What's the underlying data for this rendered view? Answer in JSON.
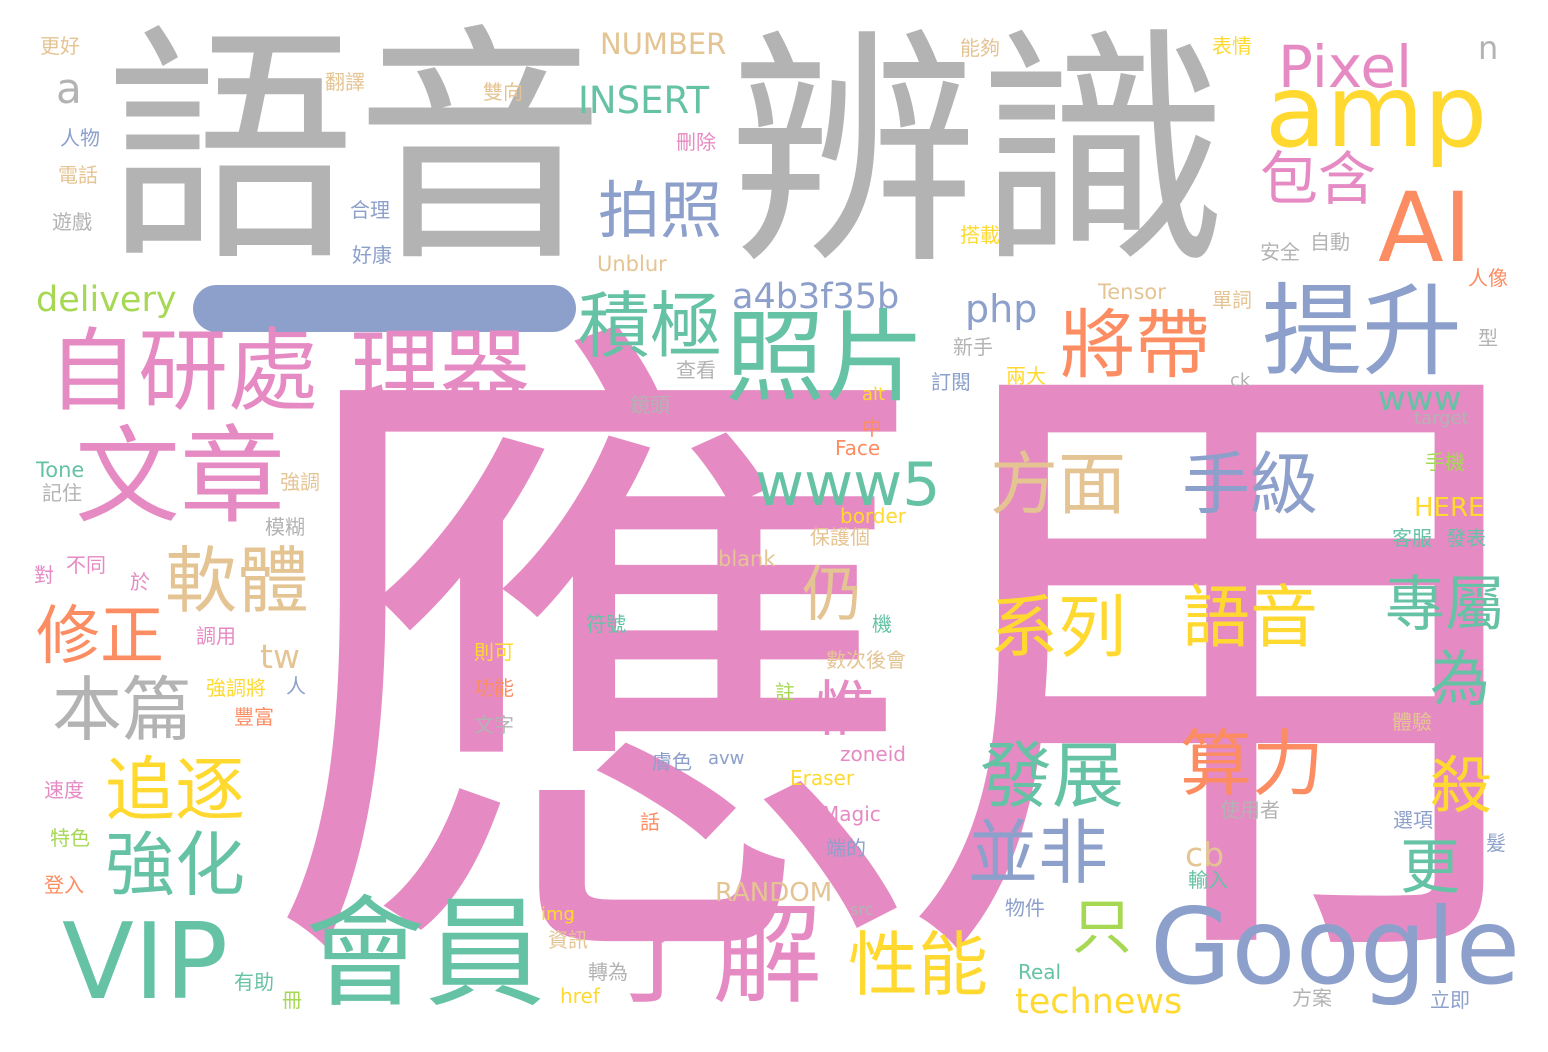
{
  "palette": {
    "gray": "#b3b3b3",
    "pink": "#e68ac3",
    "green": "#66c2a5",
    "blue": "#8da0cb",
    "orange": "#fc8d62",
    "yellow": "#ffd92f",
    "tan": "#e5c494",
    "lime": "#a6d854"
  },
  "words": [
    {
      "text": "應用",
      "color": "pink"
    },
    {
      "text": "語音",
      "color": "gray"
    },
    {
      "text": "辨識",
      "color": "gray"
    },
    {
      "text": "Google",
      "color": "blue"
    },
    {
      "text": "VIP",
      "color": "green"
    },
    {
      "text": "會員",
      "color": "green"
    },
    {
      "text": "了解",
      "color": "pink"
    },
    {
      "text": "自研處",
      "color": "pink"
    },
    {
      "text": "理器",
      "color": "pink"
    },
    {
      "text": "文章",
      "color": "pink"
    },
    {
      "text": "照片",
      "color": "green"
    },
    {
      "text": "提升",
      "color": "blue"
    },
    {
      "text": "amp",
      "color": "yellow"
    },
    {
      "text": "AI",
      "color": "orange"
    },
    {
      "text": "Pixel",
      "color": "pink"
    },
    {
      "text": "方面",
      "color": "tan"
    },
    {
      "text": "手級",
      "color": "blue"
    },
    {
      "text": "系列",
      "color": "yellow"
    },
    {
      "text": "語音",
      "color": "yellow"
    },
    {
      "text": "發展",
      "color": "green"
    },
    {
      "text": "算力",
      "color": "orange"
    },
    {
      "text": "並非",
      "color": "blue"
    },
    {
      "text": "拍照",
      "color": "blue"
    },
    {
      "text": "積極",
      "color": "green"
    },
    {
      "text": "將帶",
      "color": "orange"
    },
    {
      "text": "包含",
      "color": "pink"
    },
    {
      "text": "軟體",
      "color": "tan"
    },
    {
      "text": "本篇",
      "color": "gray"
    },
    {
      "text": "修正",
      "color": "orange"
    },
    {
      "text": "追逐",
      "color": "yellow"
    },
    {
      "text": "強化",
      "color": "green"
    },
    {
      "text": "性能",
      "color": "yellow"
    },
    {
      "text": "專屬",
      "color": "green"
    },
    {
      "text": "www5",
      "color": "green"
    },
    {
      "text": "a4b3f35b",
      "color": "blue"
    },
    {
      "text": "delivery",
      "color": "lime"
    },
    {
      "text": "INSERT",
      "color": "green"
    },
    {
      "text": "NUMBER",
      "color": "tan"
    },
    {
      "text": "technews",
      "color": "yellow"
    },
    {
      "text": "php",
      "color": "blue"
    },
    {
      "text": "www",
      "color": "green"
    },
    {
      "text": "tw",
      "color": "tan"
    },
    {
      "text": "cb",
      "color": "tan"
    },
    {
      "text": "a",
      "color": "gray"
    },
    {
      "text": "n",
      "color": "gray"
    },
    {
      "text": "只",
      "color": "lime"
    },
    {
      "text": "仍",
      "color": "tan"
    },
    {
      "text": "惟",
      "color": "pink"
    },
    {
      "text": "為",
      "color": "green"
    },
    {
      "text": "殺",
      "color": "yellow"
    },
    {
      "text": "更",
      "color": "green"
    },
    {
      "text": "RANDOM",
      "color": "tan"
    },
    {
      "text": "Unblur",
      "color": "tan"
    },
    {
      "text": "Tensor",
      "color": "tan"
    },
    {
      "text": "HERE",
      "color": "yellow"
    },
    {
      "text": "Tone",
      "color": "green"
    },
    {
      "text": "border",
      "color": "yellow"
    },
    {
      "text": "blank",
      "color": "tan"
    },
    {
      "text": "zoneid",
      "color": "pink"
    },
    {
      "text": "Eraser",
      "color": "yellow"
    },
    {
      "text": "Magic",
      "color": "pink"
    },
    {
      "text": "Face",
      "color": "orange"
    },
    {
      "text": "alt",
      "color": "yellow"
    },
    {
      "text": "target",
      "color": "gray"
    },
    {
      "text": "ck",
      "color": "gray"
    },
    {
      "text": "img",
      "color": "yellow"
    },
    {
      "text": "href",
      "color": "yellow"
    },
    {
      "text": "src",
      "color": "gray"
    },
    {
      "text": "avw",
      "color": "blue"
    },
    {
      "text": "Real",
      "color": "green"
    },
    {
      "text": "更好",
      "color": "tan"
    },
    {
      "text": "翻譯",
      "color": "tan"
    },
    {
      "text": "雙向",
      "color": "tan"
    },
    {
      "text": "能夠",
      "color": "tan"
    },
    {
      "text": "表情",
      "color": "yellow"
    },
    {
      "text": "人物",
      "color": "blue"
    },
    {
      "text": "電話",
      "color": "tan"
    },
    {
      "text": "刪除",
      "color": "pink"
    },
    {
      "text": "遊戲",
      "color": "gray"
    },
    {
      "text": "合理",
      "color": "blue"
    },
    {
      "text": "好康",
      "color": "blue"
    },
    {
      "text": "搭載",
      "color": "yellow"
    },
    {
      "text": "安全",
      "color": "gray"
    },
    {
      "text": "自動",
      "color": "gray"
    },
    {
      "text": "人像",
      "color": "orange"
    },
    {
      "text": "單詞",
      "color": "tan"
    },
    {
      "text": "型",
      "color": "gray"
    },
    {
      "text": "新手",
      "color": "gray"
    },
    {
      "text": "兩大",
      "color": "yellow"
    },
    {
      "text": "訂閱",
      "color": "blue"
    },
    {
      "text": "藉由",
      "color": "pink"
    },
    {
      "text": "查看",
      "color": "gray"
    },
    {
      "text": "鏡頭",
      "color": "gray"
    },
    {
      "text": "中",
      "color": "orange"
    },
    {
      "text": "手機",
      "color": "lime"
    },
    {
      "text": "強調",
      "color": "tan"
    },
    {
      "text": "記住",
      "color": "gray"
    },
    {
      "text": "模糊",
      "color": "gray"
    },
    {
      "text": "保護個",
      "color": "tan"
    },
    {
      "text": "客服",
      "color": "green"
    },
    {
      "text": "發表",
      "color": "green"
    },
    {
      "text": "對",
      "color": "pink"
    },
    {
      "text": "不同",
      "color": "pink"
    },
    {
      "text": "於",
      "color": "pink"
    },
    {
      "text": "符號",
      "color": "green"
    },
    {
      "text": "機",
      "color": "green"
    },
    {
      "text": "調用",
      "color": "pink"
    },
    {
      "text": "則可",
      "color": "yellow"
    },
    {
      "text": "數次後會",
      "color": "tan"
    },
    {
      "text": "功能",
      "color": "orange"
    },
    {
      "text": "強調將",
      "color": "yellow"
    },
    {
      "text": "人",
      "color": "blue"
    },
    {
      "text": "註",
      "color": "lime"
    },
    {
      "text": "豐富",
      "color": "orange"
    },
    {
      "text": "文字",
      "color": "gray"
    },
    {
      "text": "體驗",
      "color": "tan"
    },
    {
      "text": "膚色",
      "color": "blue"
    },
    {
      "text": "速度",
      "color": "pink"
    },
    {
      "text": "話",
      "color": "orange"
    },
    {
      "text": "使用者",
      "color": "gray"
    },
    {
      "text": "選項",
      "color": "blue"
    },
    {
      "text": "特色",
      "color": "lime"
    },
    {
      "text": "端的",
      "color": "blue"
    },
    {
      "text": "登入",
      "color": "orange"
    },
    {
      "text": "輸入",
      "color": "green"
    },
    {
      "text": "物件",
      "color": "blue"
    },
    {
      "text": "資訊",
      "color": "tan"
    },
    {
      "text": "轉為",
      "color": "gray"
    },
    {
      "text": "有助",
      "color": "green"
    },
    {
      "text": "冊",
      "color": "lime"
    },
    {
      "text": "方案",
      "color": "gray"
    },
    {
      "text": "立即",
      "color": "blue"
    },
    {
      "text": "髮",
      "color": "blue"
    }
  ]
}
